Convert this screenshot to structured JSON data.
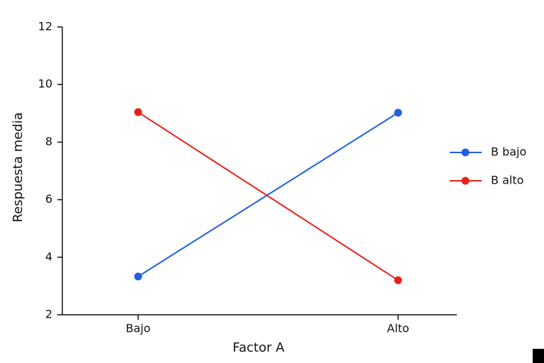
{
  "chart_data": {
    "type": "line",
    "x_label": "Factor A",
    "y_label": "Respuesta media",
    "categories": [
      "Bajo",
      "Alto"
    ],
    "series": [
      {
        "name": "B bajo",
        "color": "#1f5fe0",
        "values": [
          3.33,
          9.02
        ]
      },
      {
        "name": "B alto",
        "color": "#e8201c",
        "values": [
          9.04,
          3.2
        ]
      }
    ],
    "ylim": [
      2,
      12
    ],
    "yticks": [
      2,
      4,
      6,
      8,
      10,
      12
    ],
    "grid": false,
    "legend": "right"
  }
}
